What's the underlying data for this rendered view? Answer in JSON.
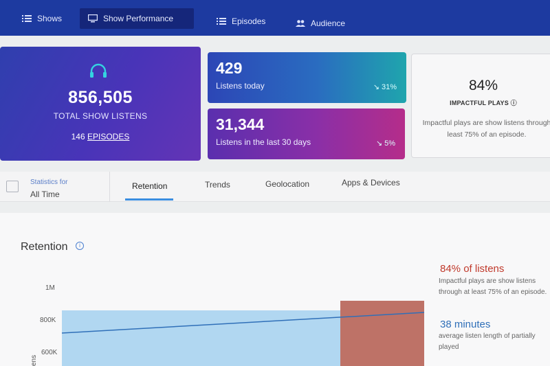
{
  "nav": {
    "items": [
      {
        "label": "Shows",
        "icon": "list-icon"
      },
      {
        "label": "Show Performance",
        "icon": "monitor-icon",
        "active": true
      },
      {
        "label": "Episodes",
        "icon": "list-icon"
      },
      {
        "label": "Audience",
        "icon": "people-icon"
      }
    ]
  },
  "summary": {
    "total_listens": "856,505",
    "total_label": "TOTAL SHOW LISTENS",
    "episodes_count": "146",
    "episodes_label": "EPISODES",
    "icon": "headphones-icon"
  },
  "today": {
    "value": "429",
    "label": "Listens today",
    "change": "↘ 31%"
  },
  "month": {
    "value": "31,344",
    "label": "Listens in the last 30 days",
    "change": "↘ 5%"
  },
  "impact": {
    "value": "84%",
    "label": "IMPACTFUL PLAYS ⓘ",
    "description": "Impactful plays are show listens through least 75% of an episode."
  },
  "filter": {
    "small_label": "Statistics for",
    "value": "All Time"
  },
  "tabs": [
    {
      "label": "Retention",
      "active": true
    },
    {
      "label": "Trends"
    },
    {
      "label": "Geolocation"
    },
    {
      "label": "Apps & Devices"
    }
  ],
  "retention": {
    "title": "Retention",
    "stat1_title": "84% of listens",
    "stat1_desc": "Impactful plays are show listens through at least 75% of an episode.",
    "stat2_title": "38 minutes",
    "stat2_desc": "average listen length of partially played",
    "colors": {
      "accent_red": "#c0392b",
      "accent_blue": "#2f6fb8"
    }
  },
  "chart_data": {
    "type": "area",
    "ytick_labels": [
      "1M",
      "800K",
      "600K"
    ],
    "ylabel": "ens",
    "series": [
      {
        "values": [
          720000,
          850000
        ]
      }
    ],
    "impactful_region_start_fraction": 0.75
  }
}
